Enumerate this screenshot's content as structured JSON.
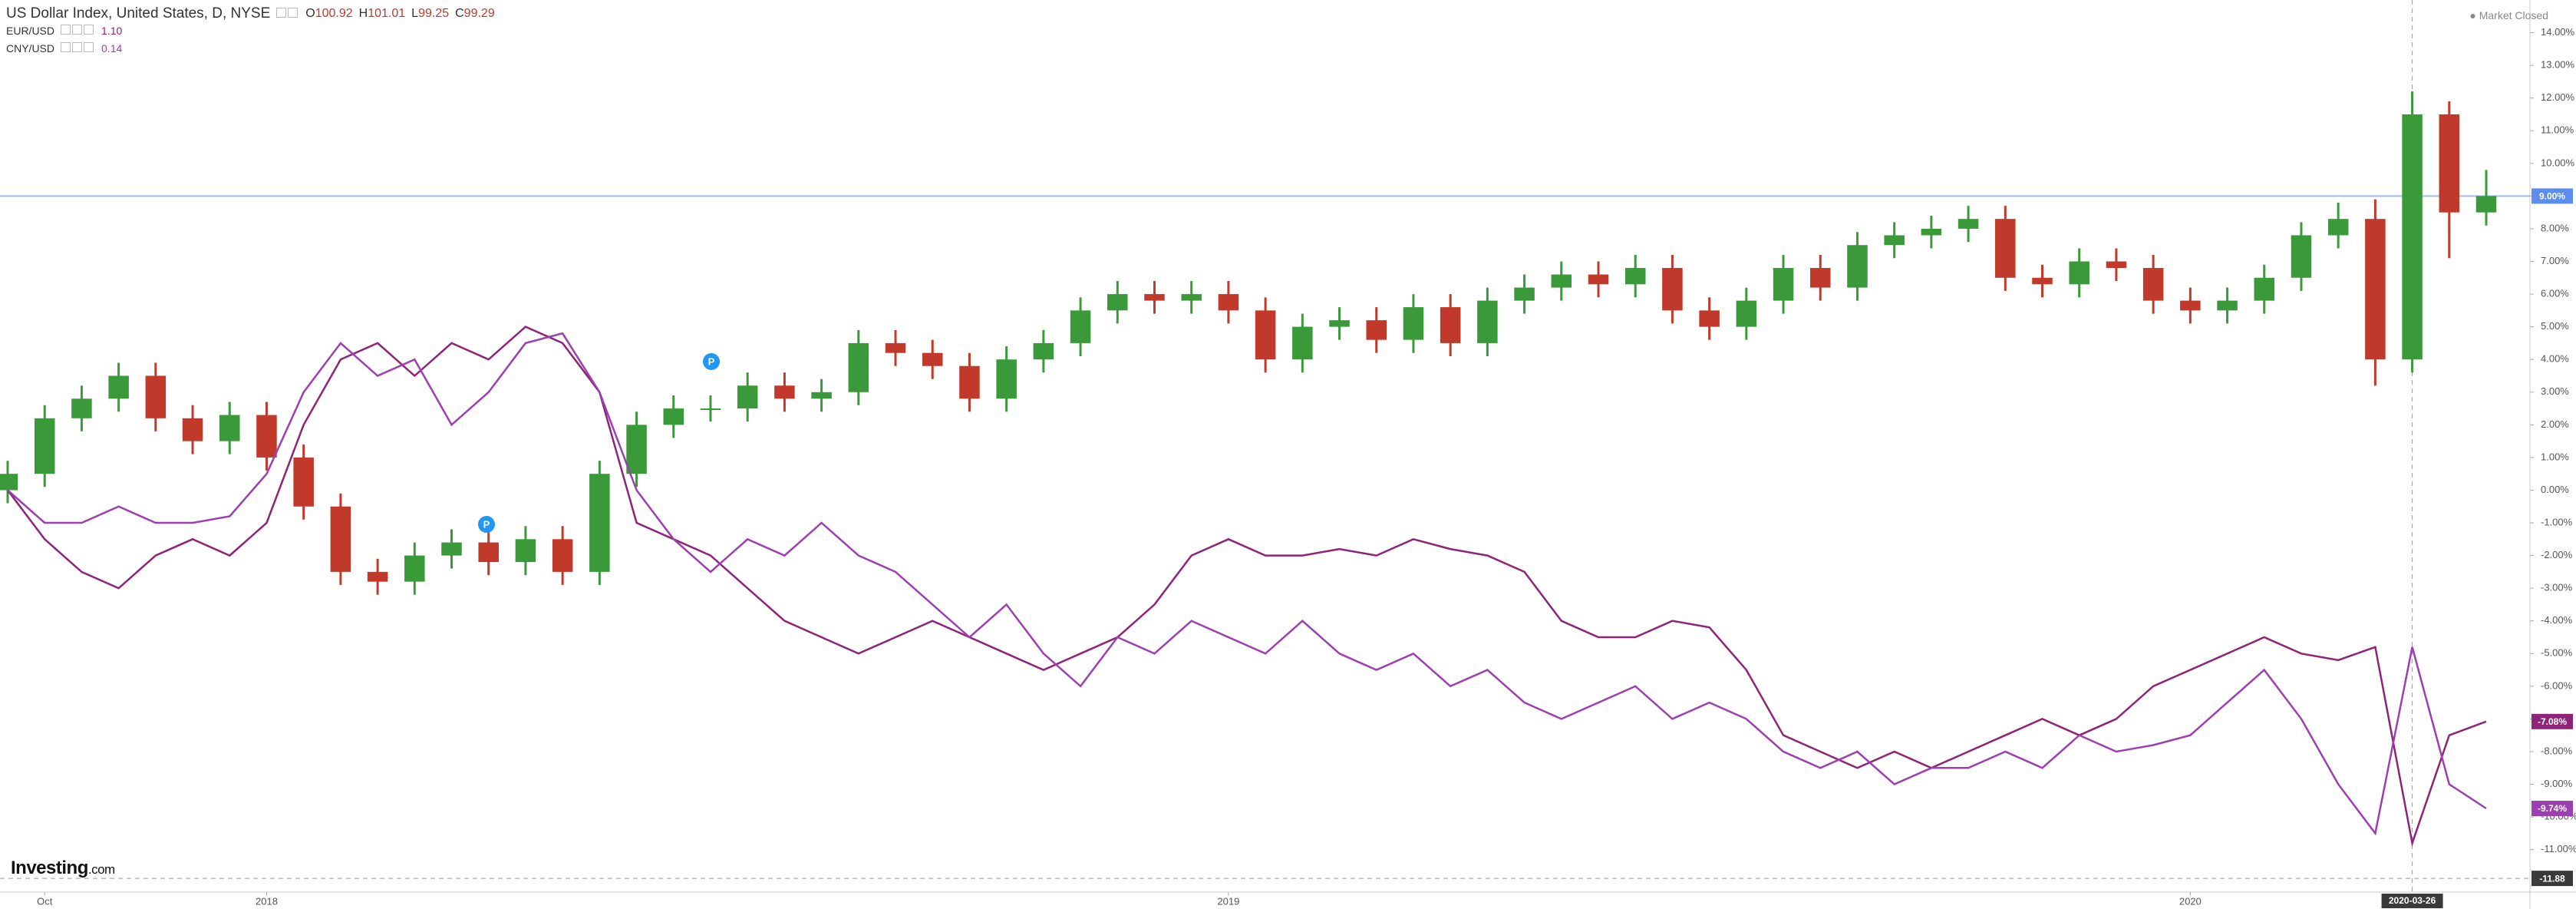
{
  "chart_data": {
    "type": "candlestick",
    "title": "US Dollar Index, United States, D, NYSE",
    "ohlc": [
      {
        "label": "O",
        "value": "100.92"
      },
      {
        "label": "H",
        "value": "101.01"
      },
      {
        "label": "L",
        "value": "99.25"
      },
      {
        "label": "C",
        "value": "99.29"
      }
    ],
    "status": "Market Closed",
    "brand": "Investing",
    "brand_suffix": ".com",
    "pin_label": "P",
    "categories": [
      null,
      "Oct",
      null,
      null,
      null,
      null,
      null,
      "2018",
      null,
      null,
      null,
      null,
      null,
      null,
      null,
      null,
      null,
      null,
      null,
      null,
      null,
      null,
      null,
      null,
      null,
      null,
      null,
      null,
      null,
      null,
      null,
      null,
      null,
      "2019",
      null,
      null,
      null,
      null,
      null,
      null,
      null,
      null,
      null,
      null,
      null,
      null,
      null,
      null,
      null,
      null,
      null,
      null,
      null,
      null,
      null,
      null,
      null,
      null,
      null,
      "2020",
      null,
      null,
      null,
      null,
      null,
      "2020-03-26",
      null,
      null
    ],
    "series": [
      {
        "type": "candlestick",
        "up_color": "#3a9a3a",
        "down_color": "#c0392b",
        "price_line_color": "#5b8def",
        "last_label": "9.00%",
        "open": [
          0.0,
          0.5,
          2.2,
          2.8,
          3.5,
          2.2,
          1.5,
          2.3,
          1.0,
          -0.5,
          -2.5,
          -2.8,
          -2.0,
          -1.6,
          -2.2,
          -1.5,
          -2.5,
          0.5,
          2.0,
          2.5,
          2.5,
          3.2,
          2.8,
          3.0,
          4.5,
          4.2,
          3.8,
          2.8,
          4.0,
          4.5,
          5.5,
          6.0,
          5.8,
          6.0,
          5.5,
          4.0,
          5.0,
          5.2,
          4.6,
          5.6,
          4.5,
          5.8,
          6.2,
          6.6,
          6.3,
          6.8,
          5.5,
          5.0,
          5.8,
          6.8,
          6.2,
          7.5,
          7.8,
          8.0,
          8.3,
          6.5,
          6.3,
          7.0,
          6.8,
          5.8,
          5.5,
          5.8,
          6.5,
          7.8,
          8.3,
          4.0,
          11.5,
          8.5
        ],
        "high": [
          0.9,
          2.6,
          3.2,
          3.9,
          3.9,
          2.6,
          2.7,
          2.7,
          1.4,
          -0.1,
          -2.1,
          -1.6,
          -1.2,
          -1.2,
          -1.1,
          -1.1,
          0.9,
          2.4,
          2.9,
          2.9,
          3.6,
          3.6,
          3.4,
          4.9,
          4.9,
          4.6,
          4.2,
          4.4,
          4.9,
          5.9,
          6.4,
          6.4,
          6.4,
          6.4,
          5.9,
          5.4,
          5.6,
          5.6,
          6.0,
          6.0,
          6.2,
          6.6,
          7.0,
          7.0,
          7.2,
          7.2,
          5.9,
          6.2,
          7.2,
          7.2,
          7.9,
          8.2,
          8.4,
          8.7,
          8.7,
          6.9,
          7.4,
          7.4,
          7.2,
          6.2,
          6.2,
          6.9,
          8.2,
          8.8,
          8.9,
          12.2,
          11.9,
          9.8
        ],
        "low": [
          -0.4,
          0.1,
          1.8,
          2.4,
          1.8,
          1.1,
          1.1,
          0.6,
          -0.9,
          -2.9,
          -3.2,
          -3.2,
          -2.4,
          -2.6,
          -2.6,
          -2.9,
          -2.9,
          0.1,
          1.6,
          2.1,
          2.1,
          2.4,
          2.4,
          2.6,
          3.8,
          3.4,
          2.4,
          2.4,
          3.6,
          4.1,
          5.1,
          5.4,
          5.4,
          5.1,
          3.6,
          3.6,
          4.6,
          4.2,
          4.2,
          4.1,
          4.1,
          5.4,
          5.8,
          5.9,
          5.9,
          5.1,
          4.6,
          4.6,
          5.4,
          5.8,
          5.8,
          7.1,
          7.4,
          7.6,
          6.1,
          5.9,
          5.9,
          6.4,
          5.4,
          5.1,
          5.1,
          5.4,
          6.1,
          7.4,
          3.2,
          3.6,
          7.1,
          8.1
        ],
        "close": [
          0.5,
          2.2,
          2.8,
          3.5,
          2.2,
          1.5,
          2.3,
          1.0,
          -0.5,
          -2.5,
          -2.8,
          -2.0,
          -1.6,
          -2.2,
          -1.5,
          -2.5,
          0.5,
          2.0,
          2.5,
          2.5,
          3.2,
          2.8,
          3.0,
          4.5,
          4.2,
          3.8,
          2.8,
          4.0,
          4.5,
          5.5,
          6.0,
          5.8,
          6.0,
          5.5,
          4.0,
          5.0,
          5.2,
          4.6,
          5.6,
          4.5,
          5.8,
          6.2,
          6.6,
          6.3,
          6.8,
          5.5,
          5.0,
          5.8,
          6.8,
          6.2,
          7.5,
          7.8,
          8.0,
          8.3,
          6.5,
          6.3,
          7.0,
          6.8,
          5.8,
          5.5,
          5.8,
          6.5,
          7.8,
          8.3,
          4.0,
          11.5,
          8.5,
          9.0
        ]
      },
      {
        "type": "line",
        "name": "EUR/USD",
        "color": "#8e2377",
        "legend_value": "1.10",
        "last_label": "-7.08%",
        "values": [
          0,
          -1.5,
          -2.5,
          -3,
          -2,
          -1.5,
          -2,
          -1,
          2,
          4,
          4.5,
          3.5,
          4.5,
          4,
          5,
          4.5,
          3,
          -1,
          -1.5,
          -2,
          -3,
          -4,
          -4.5,
          -5,
          -4.5,
          -4,
          -4.5,
          -5,
          -5.5,
          -5,
          -4.5,
          -3.5,
          -2,
          -1.5,
          -2,
          -2,
          -1.8,
          -2,
          -1.5,
          -1.8,
          -2,
          -2.5,
          -4,
          -4.5,
          -4.5,
          -4,
          -4.2,
          -5.5,
          -7.5,
          -8,
          -8.5,
          -8,
          -8.5,
          -8,
          -7.5,
          -7,
          -7.5,
          -7,
          -6,
          -5.5,
          -5,
          -4.5,
          -5,
          -5.2,
          -4.8,
          -10.8,
          -7.5,
          -7.08
        ]
      },
      {
        "type": "line",
        "name": "CNY/USD",
        "color": "#9c3fb0",
        "legend_value": "0.14",
        "last_label": "-9.74%",
        "values": [
          0,
          -1,
          -1,
          -0.5,
          -1,
          -1,
          -0.8,
          0.5,
          3,
          4.5,
          3.5,
          4,
          2,
          3,
          4.5,
          4.8,
          3,
          0,
          -1.5,
          -2.5,
          -1.5,
          -2,
          -1,
          -2,
          -2.5,
          -3.5,
          -4.5,
          -3.5,
          -5,
          -6,
          -4.5,
          -5,
          -4,
          -4.5,
          -5,
          -4,
          -5,
          -5.5,
          -5,
          -6,
          -5.5,
          -6.5,
          -7,
          -6.5,
          -6,
          -7,
          -6.5,
          -7,
          -8,
          -8.5,
          -8,
          -9,
          -8.5,
          -8.5,
          -8,
          -8.5,
          -7.5,
          -8,
          -7.8,
          -7.5,
          -6.5,
          -5.5,
          -7,
          -9,
          -10.5,
          -4.8,
          -9,
          -9.74
        ]
      }
    ],
    "ylim": [
      -12.3,
      15
    ],
    "yticks": [
      {
        "value": 14,
        "label": "14.00%"
      },
      {
        "value": 13,
        "label": "13.00%"
      },
      {
        "value": 12,
        "label": "12.00%"
      },
      {
        "value": 11,
        "label": "11.00%"
      },
      {
        "value": 10,
        "label": "10.00%"
      },
      {
        "value": 9,
        "label": "9.00%"
      },
      {
        "value": 8,
        "label": "8.00%"
      },
      {
        "value": 7,
        "label": "7.00%"
      },
      {
        "value": 6,
        "label": "6.00%"
      },
      {
        "value": 5,
        "label": "5.00%"
      },
      {
        "value": 4,
        "label": "4.00%"
      },
      {
        "value": 3,
        "label": "3.00%"
      },
      {
        "value": 2,
        "label": "2.00%"
      },
      {
        "value": 1,
        "label": "1.00%"
      },
      {
        "value": 0,
        "label": "0.00%"
      },
      {
        "value": -1,
        "label": "-1.00%"
      },
      {
        "value": -2,
        "label": "-2.00%"
      },
      {
        "value": -3,
        "label": "-3.00%"
      },
      {
        "value": -4,
        "label": "-4.00%"
      },
      {
        "value": -5,
        "label": "-5.00%"
      },
      {
        "value": -6,
        "label": "-6.00%"
      },
      {
        "value": -7,
        "label": "-7.00%"
      },
      {
        "value": -8,
        "label": "-8.00%"
      },
      {
        "value": -9,
        "label": "-9.00%"
      },
      {
        "value": -10,
        "label": "-10.00%"
      },
      {
        "value": -11,
        "label": "-11.00%"
      }
    ],
    "crosshair": {
      "value": -11.88,
      "label": "-11.88"
    }
  }
}
